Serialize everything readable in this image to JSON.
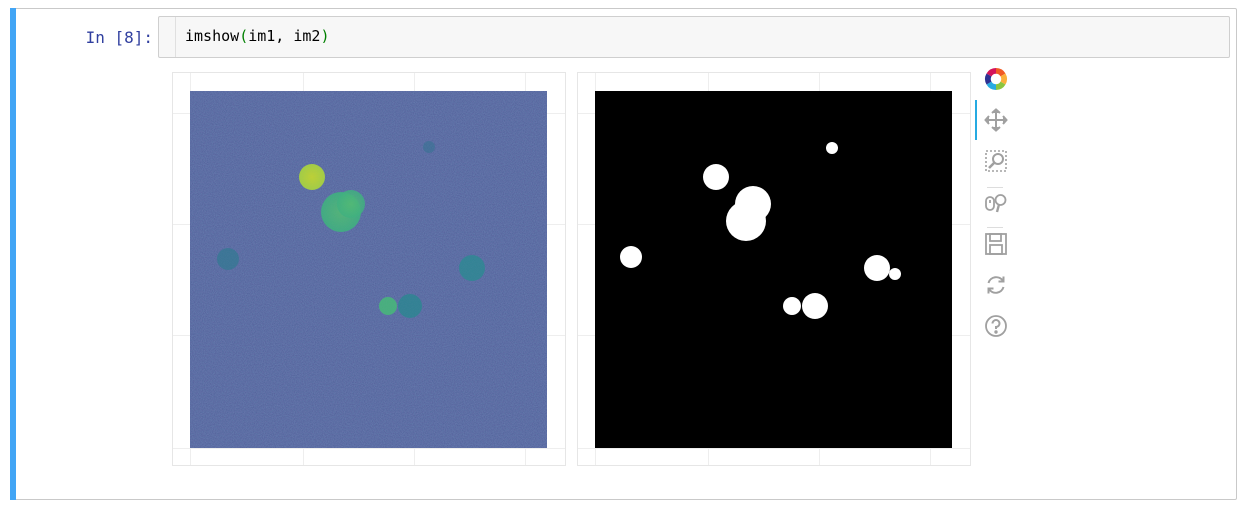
{
  "cell": {
    "prompt": "In [8]:",
    "code": {
      "func": "imshow",
      "open_paren": "(",
      "args": "im1, im2",
      "close_paren": ")"
    }
  },
  "colors": {
    "cell_accent": "#42a5f5",
    "prompt": "#303f9f",
    "paren": "#008000",
    "viridis_background": "#3b528b",
    "binary_background": "#000000",
    "binary_foreground": "#ffffff",
    "tool_active": "#26aae1"
  },
  "figures": [
    {
      "name": "im1",
      "colormap": "viridis"
    },
    {
      "name": "im2",
      "colormap": "binary"
    }
  ],
  "toolbar": {
    "tools": [
      {
        "name": "bokeh-logo-icon"
      },
      {
        "name": "pan-icon",
        "active": true
      },
      {
        "name": "box-zoom-icon"
      },
      {
        "name": "wheel-zoom-icon"
      },
      {
        "name": "save-icon"
      },
      {
        "name": "reset-icon"
      },
      {
        "name": "help-icon"
      }
    ]
  }
}
